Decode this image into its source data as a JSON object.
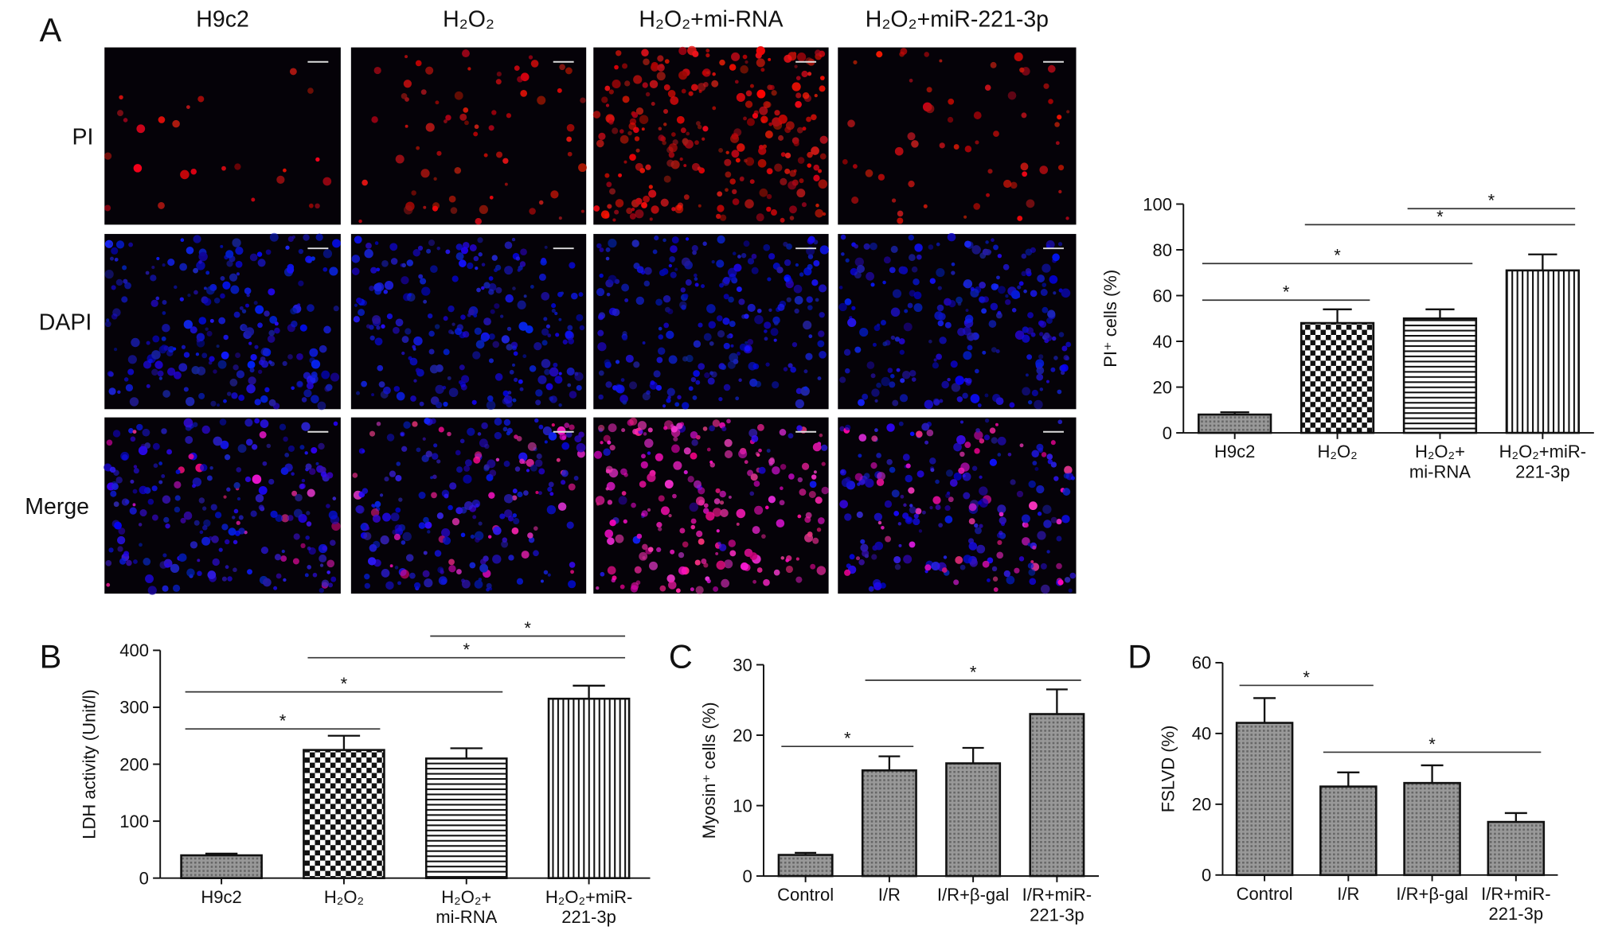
{
  "panel_a": {
    "label": "A",
    "columns": [
      "H9c2",
      "H₂O₂",
      "H₂O₂+mi-RNA",
      "H₂O₂+miR-221-3p"
    ],
    "rows": [
      "PI",
      "DAPI",
      "Merge"
    ]
  },
  "chart_data": [
    {
      "type": "bar",
      "ylabel": "PI⁺ cells (%)",
      "categories": [
        "H9c2",
        "H₂O₂",
        "H₂O₂+\nmi-RNA",
        "H₂O₂+miR-\n221-3p"
      ],
      "values": [
        8,
        48,
        50,
        71
      ],
      "errors": [
        1,
        6,
        4,
        7
      ],
      "patterns": [
        "dots",
        "checker",
        "hlines",
        "vlines"
      ],
      "color": "#888888",
      "ylim": [
        0,
        100
      ],
      "yticks": [
        0,
        20,
        40,
        60,
        80,
        100
      ],
      "significance": [
        {
          "groups": [
            "H9c2",
            "H₂O₂"
          ],
          "y": 58,
          "label": "*"
        },
        {
          "groups": [
            "H9c2",
            "H₂O₂+\nmi-RNA"
          ],
          "y": 74,
          "label": "*"
        },
        {
          "groups": [
            "H₂O₂",
            "H₂O₂+miR-\n221-3p"
          ],
          "y": 91,
          "label": "*"
        },
        {
          "groups": [
            "H₂O₂+\nmi-RNA",
            "H₂O₂+miR-\n221-3p"
          ],
          "y": 98,
          "label": "*"
        }
      ]
    },
    {
      "type": "bar",
      "panel": "B",
      "ylabel": "LDH activity (Unit/l)",
      "categories": [
        "H9c2",
        "H₂O₂",
        "H₂O₂+\nmi-RNA",
        "H₂O₂+miR-\n221-3p"
      ],
      "values": [
        40,
        225,
        210,
        315
      ],
      "errors": [
        3,
        25,
        18,
        23
      ],
      "patterns": [
        "dots",
        "checker",
        "hlines",
        "vlines"
      ],
      "color": "#888888",
      "ylim": [
        0,
        400
      ],
      "yticks": [
        0,
        100,
        200,
        300,
        400
      ],
      "significance": [
        {
          "groups": [
            "H9c2",
            "H₂O₂"
          ],
          "y": 262,
          "label": "*"
        },
        {
          "groups": [
            "H9c2",
            "H₂O₂+\nmi-RNA"
          ],
          "y": 327,
          "label": "*"
        },
        {
          "groups": [
            "H₂O₂",
            "H₂O₂+miR-\n221-3p"
          ],
          "y": 387,
          "label": "*"
        },
        {
          "groups": [
            "H₂O₂+\nmi-RNA",
            "H₂O₂+miR-\n221-3p"
          ],
          "y": 425,
          "label": "*"
        }
      ]
    },
    {
      "type": "bar",
      "panel": "C",
      "ylabel": "Myosin⁺ cells (%)",
      "categories": [
        "Control",
        "I/R",
        "I/R+β-gal",
        "I/R+miR-\n221-3p"
      ],
      "values": [
        3,
        15,
        16,
        23
      ],
      "errors": [
        0.3,
        2,
        2.2,
        3.5
      ],
      "patterns": [
        "dots",
        "dots",
        "dots",
        "dots"
      ],
      "color": "#888888",
      "ylim": [
        0,
        30
      ],
      "yticks": [
        0,
        10,
        20,
        30
      ],
      "significance": [
        {
          "groups": [
            "Control",
            "I/R"
          ],
          "y": 18.4,
          "label": "*"
        },
        {
          "groups": [
            "I/R",
            "I/R+miR-\n221-3p"
          ],
          "y": 27.8,
          "label": "*"
        }
      ]
    },
    {
      "type": "bar",
      "panel": "D",
      "ylabel": "FSLVD (%)",
      "categories": [
        "Control",
        "I/R",
        "I/R+β-gal",
        "I/R+miR-\n221-3p"
      ],
      "values": [
        43,
        25,
        26,
        15
      ],
      "errors": [
        7,
        4,
        5,
        2.5
      ],
      "patterns": [
        "dots",
        "dots",
        "dots",
        "dots"
      ],
      "color": "#888888",
      "ylim": [
        0,
        60
      ],
      "yticks": [
        0,
        20,
        40,
        60
      ],
      "significance": [
        {
          "groups": [
            "Control",
            "I/R"
          ],
          "y": 53.6,
          "label": "*"
        },
        {
          "groups": [
            "I/R",
            "I/R+miR-\n221-3p"
          ],
          "y": 34.7,
          "label": "*"
        }
      ]
    }
  ]
}
